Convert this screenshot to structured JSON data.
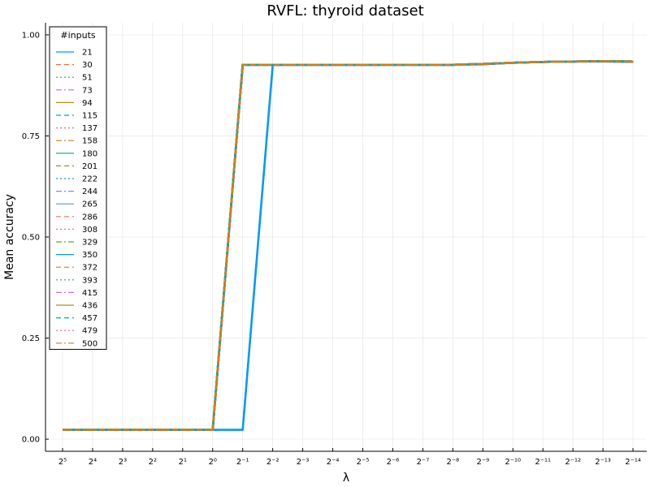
{
  "chart_data": {
    "type": "line",
    "title": "RVFL: thyroid dataset",
    "xlabel": "λ",
    "ylabel": "Mean accuracy",
    "x_exponents": [
      5,
      4,
      3,
      2,
      1,
      0,
      -1,
      -2,
      -3,
      -4,
      -5,
      -6,
      -7,
      -8,
      -9,
      -10,
      -11,
      -12,
      -13,
      -14
    ],
    "x_tick_labels": [
      "2⁵",
      "2⁴",
      "2³",
      "2²",
      "2¹",
      "2⁰",
      "2⁻¹",
      "2⁻²",
      "2⁻³",
      "2⁻⁴",
      "2⁻⁵",
      "2⁻⁶",
      "2⁻⁷",
      "2⁻⁸",
      "2⁻⁹",
      "2⁻¹⁰",
      "2⁻¹¹",
      "2⁻¹²",
      "2⁻¹³",
      "2⁻¹⁴"
    ],
    "ylim": [
      -0.03,
      1.03
    ],
    "y_ticks": [
      0.0,
      0.25,
      0.5,
      0.75,
      1.0
    ],
    "y_tick_labels": [
      "0.00",
      "0.25",
      "0.50",
      "0.75",
      "1.00"
    ],
    "grid": true,
    "legend": {
      "title": "#inputs",
      "placement": "top-left"
    },
    "series": [
      {
        "name": "21",
        "color": "#009af9",
        "dash": "solid",
        "values": [
          0.023,
          0.023,
          0.023,
          0.023,
          0.023,
          0.023,
          0.023,
          0.926,
          0.926,
          0.926,
          0.926,
          0.926,
          0.926,
          0.926,
          0.927,
          0.931,
          0.933,
          0.934,
          0.934,
          0.933
        ]
      },
      {
        "name": "30",
        "color": "#e26f46",
        "dash": "dash",
        "values": [
          0.023,
          0.023,
          0.023,
          0.023,
          0.023,
          0.023,
          0.926,
          0.926,
          0.926,
          0.926,
          0.926,
          0.926,
          0.926,
          0.926,
          0.928,
          0.931,
          0.933,
          0.934,
          0.935,
          0.934
        ]
      },
      {
        "name": "51",
        "color": "#3da44d",
        "dash": "dot",
        "values": [
          0.023,
          0.023,
          0.023,
          0.023,
          0.023,
          0.023,
          0.926,
          0.926,
          0.926,
          0.926,
          0.926,
          0.926,
          0.926,
          0.926,
          0.928,
          0.931,
          0.933,
          0.934,
          0.935,
          0.934
        ]
      },
      {
        "name": "73",
        "color": "#c271d2",
        "dash": "dashdot",
        "values": [
          0.023,
          0.023,
          0.023,
          0.023,
          0.023,
          0.023,
          0.926,
          0.926,
          0.926,
          0.926,
          0.926,
          0.926,
          0.926,
          0.926,
          0.928,
          0.931,
          0.933,
          0.934,
          0.935,
          0.934
        ]
      },
      {
        "name": "94",
        "color": "#ac8e18",
        "dash": "solid",
        "values": [
          0.023,
          0.023,
          0.023,
          0.023,
          0.023,
          0.023,
          0.926,
          0.926,
          0.926,
          0.926,
          0.926,
          0.926,
          0.926,
          0.926,
          0.928,
          0.931,
          0.933,
          0.934,
          0.935,
          0.934
        ]
      },
      {
        "name": "115",
        "color": "#00a9ad",
        "dash": "dash",
        "values": [
          0.023,
          0.023,
          0.023,
          0.023,
          0.023,
          0.023,
          0.926,
          0.926,
          0.926,
          0.926,
          0.926,
          0.926,
          0.926,
          0.926,
          0.928,
          0.931,
          0.933,
          0.934,
          0.935,
          0.934
        ]
      },
      {
        "name": "137",
        "color": "#ed5d92",
        "dash": "dot",
        "values": [
          0.023,
          0.023,
          0.023,
          0.023,
          0.023,
          0.023,
          0.926,
          0.926,
          0.926,
          0.926,
          0.926,
          0.926,
          0.926,
          0.926,
          0.928,
          0.931,
          0.933,
          0.934,
          0.935,
          0.934
        ]
      },
      {
        "name": "158",
        "color": "#c68225",
        "dash": "dashdot",
        "values": [
          0.023,
          0.023,
          0.023,
          0.023,
          0.023,
          0.023,
          0.926,
          0.926,
          0.926,
          0.926,
          0.926,
          0.926,
          0.926,
          0.926,
          0.928,
          0.931,
          0.933,
          0.934,
          0.935,
          0.934
        ]
      },
      {
        "name": "180",
        "color": "#00a98d",
        "dash": "solid",
        "values": [
          0.023,
          0.023,
          0.023,
          0.023,
          0.023,
          0.023,
          0.926,
          0.926,
          0.926,
          0.926,
          0.926,
          0.926,
          0.926,
          0.926,
          0.928,
          0.931,
          0.933,
          0.934,
          0.935,
          0.934
        ]
      },
      {
        "name": "201",
        "color": "#8e971d",
        "dash": "dash",
        "values": [
          0.023,
          0.023,
          0.023,
          0.023,
          0.023,
          0.023,
          0.926,
          0.926,
          0.926,
          0.926,
          0.926,
          0.926,
          0.926,
          0.926,
          0.928,
          0.931,
          0.933,
          0.934,
          0.935,
          0.934
        ]
      },
      {
        "name": "222",
        "color": "#00a8cb",
        "dash": "dot",
        "values": [
          0.023,
          0.023,
          0.023,
          0.023,
          0.023,
          0.023,
          0.926,
          0.926,
          0.926,
          0.926,
          0.926,
          0.926,
          0.926,
          0.926,
          0.928,
          0.931,
          0.933,
          0.934,
          0.935,
          0.934
        ]
      },
      {
        "name": "244",
        "color": "#9b7fe9",
        "dash": "dashdot",
        "values": [
          0.023,
          0.023,
          0.023,
          0.023,
          0.023,
          0.023,
          0.926,
          0.926,
          0.926,
          0.926,
          0.926,
          0.926,
          0.926,
          0.926,
          0.928,
          0.931,
          0.933,
          0.934,
          0.935,
          0.934
        ]
      },
      {
        "name": "265",
        "color": "#618df6",
        "dash": "solid",
        "values": [
          0.023,
          0.023,
          0.023,
          0.023,
          0.023,
          0.023,
          0.926,
          0.926,
          0.926,
          0.926,
          0.926,
          0.926,
          0.926,
          0.926,
          0.928,
          0.931,
          0.933,
          0.934,
          0.935,
          0.934
        ]
      },
      {
        "name": "286",
        "color": "#f16c6c",
        "dash": "dash",
        "values": [
          0.023,
          0.023,
          0.023,
          0.023,
          0.023,
          0.023,
          0.926,
          0.926,
          0.926,
          0.926,
          0.926,
          0.926,
          0.926,
          0.926,
          0.928,
          0.931,
          0.933,
          0.934,
          0.935,
          0.934
        ]
      },
      {
        "name": "308",
        "color": "#dc79a7",
        "dash": "dot",
        "values": [
          0.023,
          0.023,
          0.023,
          0.023,
          0.023,
          0.023,
          0.926,
          0.926,
          0.926,
          0.926,
          0.926,
          0.926,
          0.926,
          0.926,
          0.928,
          0.931,
          0.933,
          0.934,
          0.935,
          0.934
        ]
      },
      {
        "name": "329",
        "color": "#6a9f3c",
        "dash": "dashdot",
        "values": [
          0.023,
          0.023,
          0.023,
          0.023,
          0.023,
          0.023,
          0.926,
          0.926,
          0.926,
          0.926,
          0.926,
          0.926,
          0.926,
          0.926,
          0.928,
          0.931,
          0.933,
          0.934,
          0.935,
          0.934
        ]
      },
      {
        "name": "350",
        "color": "#009af9",
        "dash": "solid",
        "values": [
          0.023,
          0.023,
          0.023,
          0.023,
          0.023,
          0.023,
          0.926,
          0.926,
          0.926,
          0.926,
          0.926,
          0.926,
          0.926,
          0.926,
          0.928,
          0.931,
          0.933,
          0.934,
          0.935,
          0.934
        ]
      },
      {
        "name": "372",
        "color": "#e26f46",
        "dash": "dash",
        "values": [
          0.023,
          0.023,
          0.023,
          0.023,
          0.023,
          0.023,
          0.926,
          0.926,
          0.926,
          0.926,
          0.926,
          0.926,
          0.926,
          0.926,
          0.928,
          0.931,
          0.933,
          0.934,
          0.935,
          0.934
        ]
      },
      {
        "name": "393",
        "color": "#3da44d",
        "dash": "dot",
        "values": [
          0.023,
          0.023,
          0.023,
          0.023,
          0.023,
          0.023,
          0.926,
          0.926,
          0.926,
          0.926,
          0.926,
          0.926,
          0.926,
          0.926,
          0.928,
          0.931,
          0.933,
          0.934,
          0.935,
          0.934
        ]
      },
      {
        "name": "415",
        "color": "#c271d2",
        "dash": "dashdot",
        "values": [
          0.023,
          0.023,
          0.023,
          0.023,
          0.023,
          0.023,
          0.926,
          0.926,
          0.926,
          0.926,
          0.926,
          0.926,
          0.926,
          0.926,
          0.928,
          0.931,
          0.933,
          0.934,
          0.935,
          0.934
        ]
      },
      {
        "name": "436",
        "color": "#ac8e18",
        "dash": "solid",
        "values": [
          0.023,
          0.023,
          0.023,
          0.023,
          0.023,
          0.023,
          0.926,
          0.926,
          0.926,
          0.926,
          0.926,
          0.926,
          0.926,
          0.926,
          0.928,
          0.931,
          0.933,
          0.934,
          0.935,
          0.934
        ]
      },
      {
        "name": "457",
        "color": "#00a9ad",
        "dash": "dash",
        "values": [
          0.023,
          0.023,
          0.023,
          0.023,
          0.023,
          0.023,
          0.926,
          0.926,
          0.926,
          0.926,
          0.926,
          0.926,
          0.926,
          0.926,
          0.928,
          0.931,
          0.933,
          0.934,
          0.935,
          0.934
        ]
      },
      {
        "name": "479",
        "color": "#ed5d92",
        "dash": "dot",
        "values": [
          0.023,
          0.023,
          0.023,
          0.023,
          0.023,
          0.023,
          0.926,
          0.926,
          0.926,
          0.926,
          0.926,
          0.926,
          0.926,
          0.926,
          0.928,
          0.931,
          0.933,
          0.934,
          0.935,
          0.934
        ]
      },
      {
        "name": "500",
        "color": "#c68225",
        "dash": "dashdot",
        "values": [
          0.023,
          0.023,
          0.023,
          0.023,
          0.023,
          0.023,
          0.926,
          0.926,
          0.926,
          0.926,
          0.926,
          0.926,
          0.926,
          0.926,
          0.928,
          0.931,
          0.933,
          0.934,
          0.935,
          0.934
        ]
      }
    ]
  }
}
